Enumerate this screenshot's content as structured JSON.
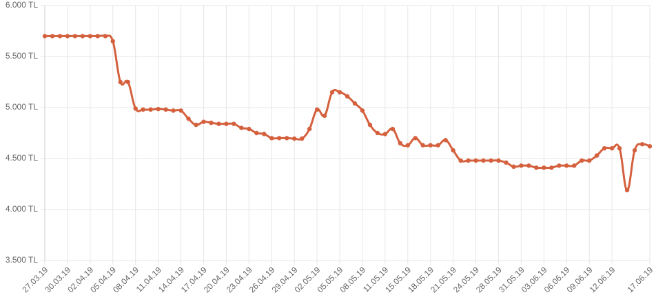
{
  "chart_data": {
    "type": "line",
    "categories": [
      "27.03.19",
      null,
      null,
      "30.03.19",
      null,
      null,
      "02.04.19",
      null,
      null,
      "05.04.19",
      null,
      null,
      "08.04.19",
      null,
      null,
      "11.04.19",
      null,
      null,
      "14.04.19",
      null,
      null,
      "17.04.19",
      null,
      null,
      "20.04.19",
      null,
      null,
      "23.04.19",
      null,
      null,
      "26.04.19",
      null,
      null,
      "29.04.19",
      null,
      null,
      "02.05.19",
      null,
      null,
      "05.05.19",
      null,
      null,
      "08.05.19",
      null,
      null,
      "11.05.19",
      null,
      null,
      "15.05.19",
      null,
      null,
      "18.05.19",
      null,
      null,
      "21.05.19",
      null,
      null,
      "24.05.19",
      null,
      null,
      "28.05.19",
      null,
      null,
      "31.05.19",
      null,
      null,
      "03.06.19",
      null,
      null,
      "06.06.19",
      null,
      null,
      "09.06.19",
      null,
      null,
      "12.06.19",
      null,
      null,
      null,
      null,
      "17.06.19"
    ],
    "values": [
      5700,
      5700,
      5700,
      5700,
      5700,
      5700,
      5700,
      5700,
      5700,
      5650,
      5250,
      5250,
      4990,
      4980,
      4980,
      4985,
      4980,
      4970,
      4970,
      4890,
      4830,
      4860,
      4850,
      4840,
      4840,
      4840,
      4800,
      4790,
      4750,
      4740,
      4700,
      4700,
      4700,
      4695,
      4695,
      4790,
      4980,
      4920,
      5150,
      5150,
      5110,
      5040,
      4970,
      4830,
      4750,
      4740,
      4790,
      4650,
      4630,
      4700,
      4630,
      4630,
      4630,
      4680,
      4580,
      4480,
      4480,
      4480,
      4480,
      4480,
      4480,
      4460,
      4420,
      4430,
      4430,
      4410,
      4410,
      4410,
      4430,
      4430,
      4430,
      4480,
      4480,
      4530,
      4600,
      4600,
      4600,
      4190,
      4580,
      4640,
      4620
    ],
    "color": "#d4603d",
    "ylim": [
      3500,
      6000
    ],
    "yticks": [
      {
        "value": 3500,
        "label": "3.500 TL"
      },
      {
        "value": 4000,
        "label": "4.000 TL"
      },
      {
        "value": 4500,
        "label": "4.500 TL"
      },
      {
        "value": 5000,
        "label": "5.000 TL"
      },
      {
        "value": 5500,
        "label": "5.500 TL"
      },
      {
        "value": 6000,
        "label": "6.000 TL"
      }
    ],
    "grid": true
  }
}
